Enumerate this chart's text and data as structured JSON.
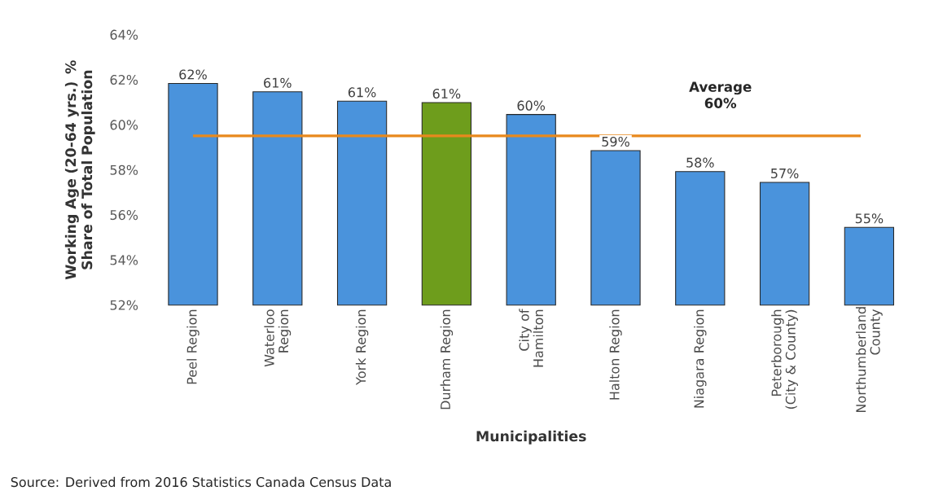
{
  "chart_data": {
    "type": "bar",
    "xlabel": "Municipalities",
    "ylabel": "Working Age (20-64 yrs.) % Share of Total Population",
    "categories": [
      "Peel Region",
      "Waterloo Region",
      "York Region",
      "Durham Region",
      "City of Hamilton",
      "Halton Region",
      "Niagara Region",
      "Peterborough (City & County)",
      "Northumberland County"
    ],
    "values": [
      61.84,
      61.47,
      61.05,
      60.99,
      60.46,
      58.86,
      57.93,
      57.45,
      55.45
    ],
    "colors": [
      "#4a93dc",
      "#4a93dc",
      "#4a93dc",
      "#6e9d1c",
      "#4a93dc",
      "#4a93dc",
      "#4a93dc",
      "#4a93dc",
      "#4a93dc"
    ],
    "value_labels": [
      "62%",
      "61%",
      "61%",
      "61%",
      "60%",
      "59%",
      "58%",
      "57%",
      "55%"
    ],
    "ylim": [
      52,
      64
    ],
    "yticks": [
      {
        "value": 52,
        "label": "52%"
      },
      {
        "value": 54,
        "label": "54%"
      },
      {
        "value": 56,
        "label": "56%"
      },
      {
        "value": 58,
        "label": "58%"
      },
      {
        "value": 60,
        "label": "60%"
      },
      {
        "value": 62,
        "label": "62%"
      },
      {
        "value": 64,
        "label": "64%"
      }
    ],
    "ref_lines": [
      {
        "axis": "y",
        "value": 59.51,
        "label": "Average 60%",
        "color": "#e8891d"
      }
    ],
    "annotations": [
      "Source: Derived from 2016 Statistics Canada Census Data"
    ]
  }
}
